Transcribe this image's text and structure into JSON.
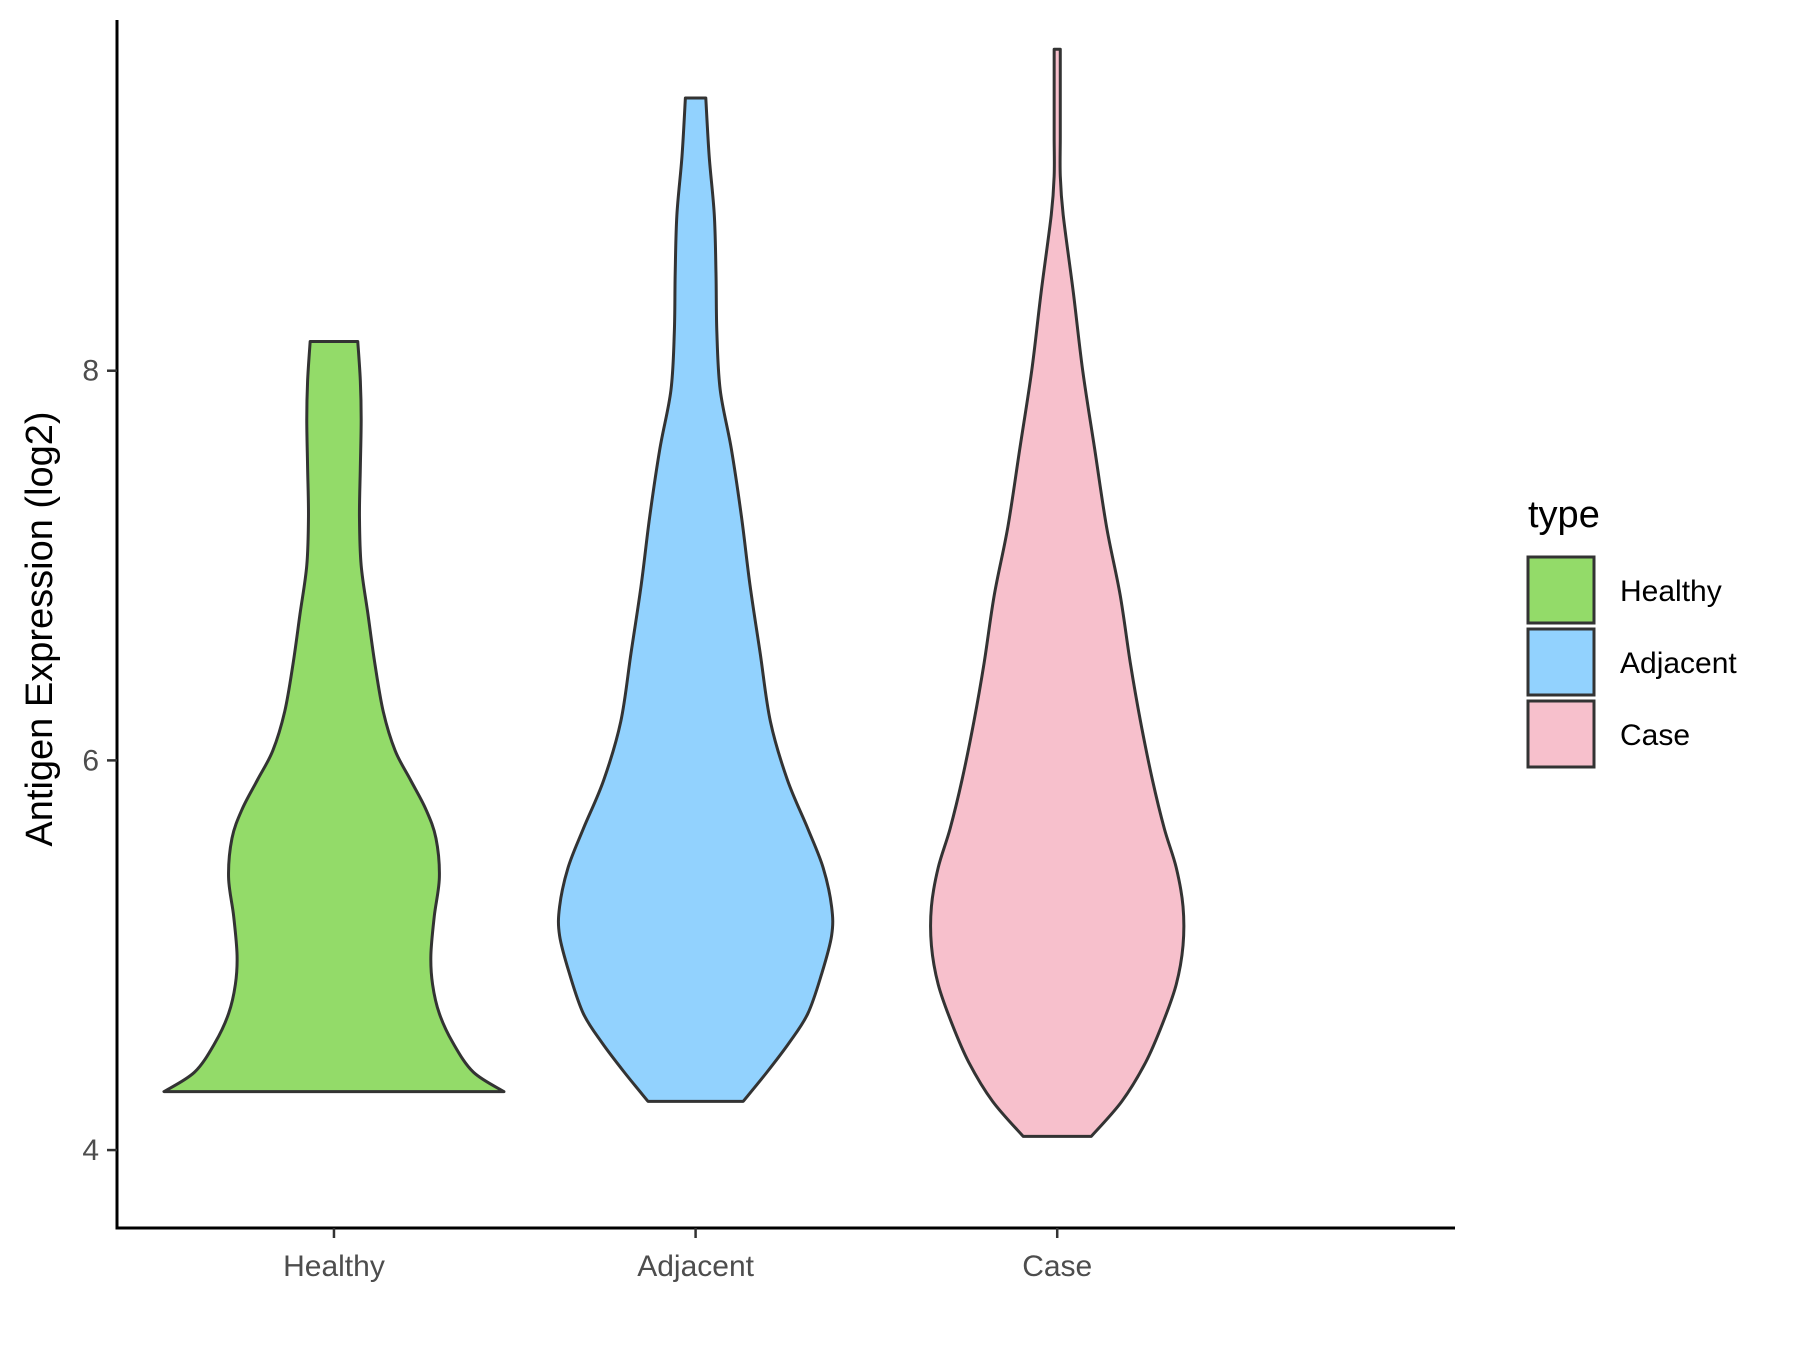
{
  "chart_data": {
    "type": "violin",
    "ylabel": "Antigen Expression (log2)",
    "xlabel": "",
    "ylim": [
      3.6,
      9.8
    ],
    "yticks": [
      4,
      6,
      8
    ],
    "categories": [
      "Healthy",
      "Adjacent",
      "Case"
    ],
    "legend": {
      "title": "type",
      "position": "right",
      "entries": [
        "Healthy",
        "Adjacent",
        "Case"
      ]
    },
    "series": [
      {
        "name": "Healthy",
        "color": "#93db69",
        "min": 4.3,
        "max": 8.15,
        "density": [
          [
            4.3,
            1.0
          ],
          [
            4.4,
            0.82
          ],
          [
            4.55,
            0.7
          ],
          [
            4.7,
            0.62
          ],
          [
            4.85,
            0.58
          ],
          [
            5.0,
            0.57
          ],
          [
            5.2,
            0.59
          ],
          [
            5.4,
            0.62
          ],
          [
            5.6,
            0.6
          ],
          [
            5.75,
            0.54
          ],
          [
            5.9,
            0.45
          ],
          [
            6.05,
            0.36
          ],
          [
            6.25,
            0.29
          ],
          [
            6.5,
            0.24
          ],
          [
            6.75,
            0.2
          ],
          [
            7.0,
            0.16
          ],
          [
            7.25,
            0.15
          ],
          [
            7.5,
            0.155
          ],
          [
            7.75,
            0.16
          ],
          [
            7.95,
            0.155
          ],
          [
            8.15,
            0.14
          ]
        ]
      },
      {
        "name": "Adjacent",
        "color": "#92d2fe",
        "min": 4.25,
        "max": 9.4,
        "density": [
          [
            4.25,
            0.28
          ],
          [
            4.4,
            0.42
          ],
          [
            4.55,
            0.55
          ],
          [
            4.7,
            0.66
          ],
          [
            4.9,
            0.74
          ],
          [
            5.1,
            0.8
          ],
          [
            5.25,
            0.8
          ],
          [
            5.45,
            0.75
          ],
          [
            5.65,
            0.66
          ],
          [
            5.9,
            0.54
          ],
          [
            6.2,
            0.44
          ],
          [
            6.55,
            0.38
          ],
          [
            6.9,
            0.32
          ],
          [
            7.25,
            0.27
          ],
          [
            7.6,
            0.21
          ],
          [
            7.9,
            0.145
          ],
          [
            8.2,
            0.125
          ],
          [
            8.5,
            0.12
          ],
          [
            8.8,
            0.11
          ],
          [
            9.1,
            0.08
          ],
          [
            9.4,
            0.06
          ]
        ]
      },
      {
        "name": "Case",
        "color": "#f7c0cc",
        "min": 4.07,
        "max": 9.65,
        "density": [
          [
            4.07,
            0.2
          ],
          [
            4.25,
            0.38
          ],
          [
            4.45,
            0.52
          ],
          [
            4.65,
            0.62
          ],
          [
            4.85,
            0.7
          ],
          [
            5.05,
            0.74
          ],
          [
            5.25,
            0.74
          ],
          [
            5.45,
            0.7
          ],
          [
            5.65,
            0.63
          ],
          [
            5.9,
            0.56
          ],
          [
            6.2,
            0.49
          ],
          [
            6.5,
            0.43
          ],
          [
            6.85,
            0.37
          ],
          [
            7.2,
            0.29
          ],
          [
            7.6,
            0.22
          ],
          [
            8.0,
            0.15
          ],
          [
            8.4,
            0.095
          ],
          [
            8.8,
            0.035
          ],
          [
            9.0,
            0.018
          ],
          [
            9.2,
            0.018
          ],
          [
            9.45,
            0.018
          ],
          [
            9.65,
            0.018
          ]
        ]
      }
    ]
  }
}
